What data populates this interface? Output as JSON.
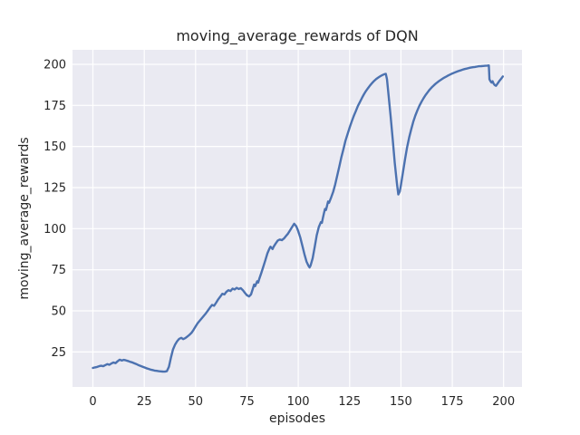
{
  "colors": {
    "figure_background": "#ffffff",
    "axes_background": "#eaeaf2",
    "grid": "#ffffff",
    "text": "#262626",
    "line": "#4c72b0"
  },
  "chart_data": {
    "type": "line",
    "title": "moving_average_rewards of DQN",
    "xlabel": "episodes",
    "ylabel": "moving_average_rewards",
    "xlim": [
      -9.95,
      208.95
    ],
    "ylim": [
      3.7,
      208.8
    ],
    "x_ticks": [
      0,
      25,
      50,
      75,
      100,
      125,
      150,
      175,
      200
    ],
    "y_ticks": [
      25,
      50,
      75,
      100,
      125,
      150,
      175,
      200
    ],
    "grid": true,
    "legend": false,
    "style": "seaborn-darkgrid",
    "series": [
      {
        "name": "moving_average_rewards",
        "color": "#4c72b0",
        "points": [
          [
            0,
            15.3
          ],
          [
            1,
            15.6
          ],
          [
            2,
            15.9
          ],
          [
            3,
            16.3
          ],
          [
            4,
            16.6
          ],
          [
            5,
            16.3
          ],
          [
            6,
            17.0
          ],
          [
            7,
            17.6
          ],
          [
            8,
            17.2
          ],
          [
            9,
            18.0
          ],
          [
            10,
            18.6
          ],
          [
            11,
            18.2
          ],
          [
            12,
            19.3
          ],
          [
            13,
            20.3
          ],
          [
            14,
            19.8
          ],
          [
            15,
            20.2
          ],
          [
            16,
            19.9
          ],
          [
            17,
            19.5
          ],
          [
            18,
            19.1
          ],
          [
            19,
            18.7
          ],
          [
            20,
            18.2
          ],
          [
            21,
            17.7
          ],
          [
            22,
            17.1
          ],
          [
            23,
            16.6
          ],
          [
            24,
            16.1
          ],
          [
            25,
            15.6
          ],
          [
            26,
            15.1
          ],
          [
            27,
            14.7
          ],
          [
            28,
            14.3
          ],
          [
            29,
            14.0
          ],
          [
            30,
            13.7
          ],
          [
            31,
            13.5
          ],
          [
            32,
            13.3
          ],
          [
            33,
            13.2
          ],
          [
            34,
            13.1
          ],
          [
            35,
            13.0
          ],
          [
            36,
            13.3
          ],
          [
            37,
            16.0
          ],
          [
            38,
            21.5
          ],
          [
            39,
            26.5
          ],
          [
            40,
            29.5
          ],
          [
            41,
            31.5
          ],
          [
            42,
            33.0
          ],
          [
            43,
            33.6
          ],
          [
            44,
            32.8
          ],
          [
            45,
            33.4
          ],
          [
            46,
            34.4
          ],
          [
            47,
            35.4
          ],
          [
            48,
            36.6
          ],
          [
            49,
            38.5
          ],
          [
            50,
            40.5
          ],
          [
            51,
            42.5
          ],
          [
            52,
            44.0
          ],
          [
            53,
            45.5
          ],
          [
            54,
            47.0
          ],
          [
            55,
            48.5
          ],
          [
            56,
            50.2
          ],
          [
            57,
            52.0
          ],
          [
            58,
            53.6
          ],
          [
            59,
            53.1
          ],
          [
            60,
            55.0
          ],
          [
            61,
            57.0
          ],
          [
            62,
            58.6
          ],
          [
            63,
            60.4
          ],
          [
            64,
            60.0
          ],
          [
            65,
            61.6
          ],
          [
            66,
            62.6
          ],
          [
            67,
            62.1
          ],
          [
            68,
            63.5
          ],
          [
            69,
            63.0
          ],
          [
            70,
            64.0
          ],
          [
            71,
            63.3
          ],
          [
            72,
            63.8
          ],
          [
            73,
            62.6
          ],
          [
            74,
            61.0
          ],
          [
            75,
            59.5
          ],
          [
            76,
            58.8
          ],
          [
            77,
            60.0
          ],
          [
            78,
            64.0
          ],
          [
            78.5,
            66.0
          ],
          [
            79,
            65.0
          ],
          [
            80,
            68.0
          ],
          [
            80.5,
            67.2
          ],
          [
            81,
            69.5
          ],
          [
            82,
            73.0
          ],
          [
            83,
            77.0
          ],
          [
            84,
            81.0
          ],
          [
            85,
            85.0
          ],
          [
            86,
            88.0
          ],
          [
            86.5,
            89.0
          ],
          [
            87,
            88.3
          ],
          [
            87.5,
            87.6
          ],
          [
            88,
            89.0
          ],
          [
            89,
            91.0
          ],
          [
            90,
            92.8
          ],
          [
            91,
            93.4
          ],
          [
            92,
            93.0
          ],
          [
            93,
            94.0
          ],
          [
            94,
            95.5
          ],
          [
            95,
            97.0
          ],
          [
            96,
            99.0
          ],
          [
            97,
            101.0
          ],
          [
            98,
            103.0
          ],
          [
            99,
            101.5
          ],
          [
            100,
            98.5
          ],
          [
            101,
            94.5
          ],
          [
            102,
            89.5
          ],
          [
            103,
            84.5
          ],
          [
            104,
            80.0
          ],
          [
            105,
            77.3
          ],
          [
            105.5,
            76.4
          ],
          [
            106,
            77.5
          ],
          [
            107,
            82.0
          ],
          [
            108,
            89.0
          ],
          [
            109,
            96.0
          ],
          [
            110,
            101.0
          ],
          [
            111,
            104.0
          ],
          [
            111.5,
            103.6
          ],
          [
            112,
            106.5
          ],
          [
            112.5,
            109.5
          ],
          [
            113,
            112.0
          ],
          [
            113.5,
            111.4
          ],
          [
            114,
            114.0
          ],
          [
            114.5,
            116.5
          ],
          [
            115,
            115.8
          ],
          [
            116,
            119.0
          ],
          [
            117,
            122.5
          ],
          [
            118,
            127.0
          ],
          [
            119,
            132.5
          ],
          [
            120,
            138.0
          ],
          [
            121,
            143.5
          ],
          [
            122,
            148.5
          ],
          [
            123,
            153.5
          ],
          [
            124,
            157.5
          ],
          [
            125,
            161.5
          ],
          [
            126,
            165.0
          ],
          [
            127,
            168.5
          ],
          [
            128,
            171.5
          ],
          [
            129,
            174.5
          ],
          [
            130,
            177.0
          ],
          [
            131,
            179.5
          ],
          [
            132,
            181.8
          ],
          [
            133,
            183.8
          ],
          [
            134,
            185.6
          ],
          [
            135,
            187.2
          ],
          [
            136,
            188.7
          ],
          [
            137,
            190.0
          ],
          [
            138,
            191.1
          ],
          [
            139,
            192.0
          ],
          [
            140,
            192.8
          ],
          [
            141,
            193.5
          ],
          [
            142,
            194.0
          ],
          [
            142.6,
            194.2
          ],
          [
            143.2,
            191.0
          ],
          [
            144,
            181.0
          ],
          [
            145,
            168.0
          ],
          [
            146,
            154.0
          ],
          [
            147,
            140.0
          ],
          [
            148,
            128.0
          ],
          [
            148.7,
            120.8
          ],
          [
            149.4,
            122.5
          ],
          [
            150,
            126.5
          ],
          [
            151,
            134.5
          ],
          [
            152,
            142.5
          ],
          [
            153,
            149.5
          ],
          [
            154,
            155.5
          ],
          [
            155,
            160.5
          ],
          [
            156,
            165.0
          ],
          [
            157,
            168.8
          ],
          [
            158,
            172.0
          ],
          [
            159,
            174.8
          ],
          [
            160,
            177.2
          ],
          [
            161,
            179.4
          ],
          [
            162,
            181.3
          ],
          [
            163,
            183.0
          ],
          [
            164,
            184.6
          ],
          [
            165,
            186.0
          ],
          [
            166,
            187.2
          ],
          [
            167,
            188.3
          ],
          [
            168,
            189.3
          ],
          [
            169,
            190.2
          ],
          [
            170,
            191.0
          ],
          [
            171,
            191.8
          ],
          [
            172,
            192.5
          ],
          [
            173,
            193.2
          ],
          [
            174,
            193.8
          ],
          [
            175,
            194.4
          ],
          [
            176,
            194.9
          ],
          [
            177,
            195.4
          ],
          [
            178,
            195.9
          ],
          [
            179,
            196.3
          ],
          [
            180,
            196.7
          ],
          [
            181,
            197.1
          ],
          [
            182,
            197.4
          ],
          [
            183,
            197.7
          ],
          [
            184,
            198.0
          ],
          [
            185,
            198.2
          ],
          [
            186,
            198.4
          ],
          [
            187,
            198.6
          ],
          [
            188,
            198.8
          ],
          [
            189,
            198.9
          ],
          [
            190,
            199.0
          ],
          [
            191,
            199.1
          ],
          [
            192,
            199.2
          ],
          [
            192.8,
            199.3
          ],
          [
            193.1,
            190.8
          ],
          [
            193.6,
            189.7
          ],
          [
            194.1,
            188.9
          ],
          [
            194.6,
            189.7
          ],
          [
            195.1,
            188.3
          ],
          [
            195.7,
            187.3
          ],
          [
            196.3,
            186.9
          ],
          [
            197,
            188.2
          ],
          [
            198,
            190.0
          ],
          [
            199,
            191.6
          ],
          [
            199.6,
            192.6
          ]
        ]
      }
    ]
  }
}
